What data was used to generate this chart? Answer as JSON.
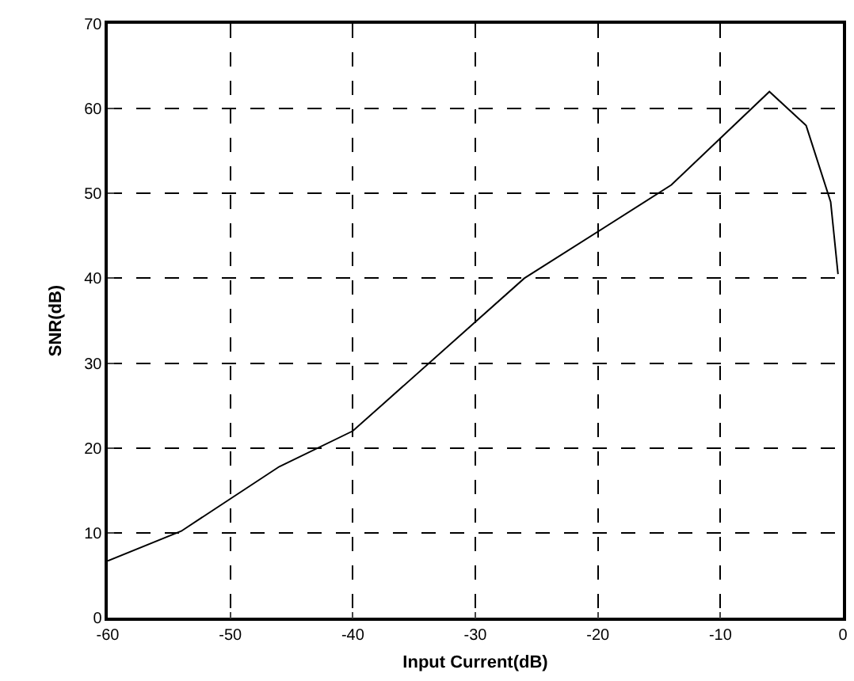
{
  "chart_data": {
    "type": "line",
    "xlabel": "Input Current(dB)",
    "ylabel": "SNR(dB)",
    "x": [
      -60,
      -54,
      -46,
      -40,
      -26,
      -14,
      -6,
      -3,
      -1,
      -0.4
    ],
    "series": [
      {
        "color": "#000000",
        "values": [
          6.7,
          10.2,
          17.8,
          22,
          40,
          51,
          62,
          58,
          49,
          40.5
        ]
      }
    ],
    "xlim": [
      -60,
      0
    ],
    "xticks": [
      -60,
      -50,
      -40,
      -30,
      -20,
      -10,
      0
    ],
    "ylim": [
      0,
      70
    ],
    "yticks": [
      0,
      10,
      20,
      30,
      40,
      50,
      60,
      70
    ],
    "grid": true,
    "marker": "none",
    "line_style": "solid"
  }
}
